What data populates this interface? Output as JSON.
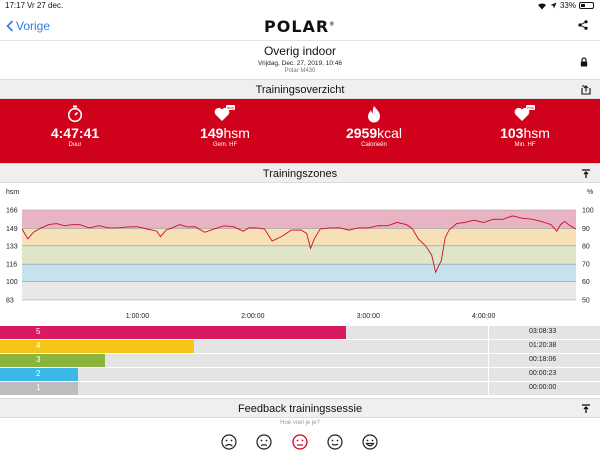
{
  "status_bar": {
    "time": "17:17",
    "date": "Vr 27 dec.",
    "battery": "33%"
  },
  "nav": {
    "back_label": "Vorige",
    "logo": "POLAR"
  },
  "session": {
    "title": "Overig indoor",
    "date": "Vrijdag, Dec. 27, 2019, 10:46",
    "device": "Polar M430"
  },
  "summary": {
    "heading": "Trainingsoverzicht",
    "stats": [
      {
        "icon": "stopwatch-icon",
        "value": "4:47:41",
        "unit": "",
        "label": "Duur"
      },
      {
        "icon": "heart-avg-icon",
        "badge": "avg",
        "value": "149",
        "unit": "hsm",
        "label": "Gem. HF"
      },
      {
        "icon": "flame-icon",
        "value": "2959",
        "unit": "kcal",
        "label": "Calorieën"
      },
      {
        "icon": "heart-min-icon",
        "badge": "min",
        "value": "103",
        "unit": "hsm",
        "label": "Min. HF"
      }
    ]
  },
  "zones_section": {
    "heading": "Trainingszones"
  },
  "chart_data": {
    "type": "line",
    "ylabel": "hsm",
    "y2label": "%",
    "y_ticks": [
      166,
      149,
      133,
      116,
      100,
      83
    ],
    "y2_ticks": [
      100,
      90,
      80,
      70,
      60,
      50
    ],
    "ylim": [
      83,
      170
    ],
    "x_ticks": [
      "1:00:00",
      "2:00:00",
      "3:00:00",
      "4:00:00"
    ],
    "x_tick_minutes": [
      60,
      120,
      180,
      240
    ],
    "xlim_minutes": [
      0,
      288
    ],
    "zone_colors": [
      "#e8b4c4",
      "#f6e0b8",
      "#dfe6c8",
      "#c6e2ef",
      "#e8e8e8"
    ],
    "line_color": "#c8102e",
    "series": [
      {
        "x": [
          0,
          3,
          6,
          10,
          14,
          18,
          22,
          26,
          30,
          35,
          40,
          45,
          50,
          55,
          60,
          65,
          70,
          72,
          75,
          78,
          82,
          86,
          90,
          95,
          100,
          105,
          110,
          115,
          118,
          122,
          126,
          130,
          135,
          140,
          145,
          148,
          150,
          152,
          155,
          160,
          165,
          170,
          175,
          180,
          185,
          190,
          195,
          200,
          203,
          206,
          210,
          213,
          215,
          218,
          220,
          222,
          226,
          230,
          235,
          240,
          245,
          250,
          255,
          260,
          265,
          270,
          275,
          278,
          280,
          282,
          285,
          288
        ],
        "y": [
          148,
          140,
          145,
          150,
          152,
          154,
          151,
          153,
          152,
          150,
          151,
          150,
          149,
          151,
          150,
          149,
          146,
          142,
          147,
          150,
          152,
          151,
          150,
          146,
          148,
          152,
          150,
          147,
          149,
          150,
          148,
          138,
          141,
          148,
          147,
          145,
          130,
          140,
          148,
          150,
          149,
          148,
          149,
          150,
          151,
          152,
          154,
          153,
          148,
          140,
          132,
          125,
          108,
          120,
          140,
          148,
          153,
          155,
          156,
          155,
          157,
          158,
          160,
          159,
          157,
          156,
          152,
          147,
          152,
          156,
          151,
          149
        ]
      }
    ]
  },
  "zones": [
    {
      "zone": "5",
      "time": "03:08:33",
      "fraction": 0.577,
      "color": "#d81b60"
    },
    {
      "zone": "4",
      "time": "01:20:38",
      "fraction": 0.323,
      "color": "#f5c518"
    },
    {
      "zone": "3",
      "time": "00:18:06",
      "fraction": 0.175,
      "color": "#8ab43c"
    },
    {
      "zone": "2",
      "time": "00:00:23",
      "fraction": 0.13,
      "color": "#3bb8e8"
    },
    {
      "zone": "1",
      "time": "00:00:00",
      "fraction": 0.13,
      "color": "#bdbdbd"
    }
  ],
  "feedback": {
    "heading": "Feedback trainingssessie",
    "prompt": "Hoe voel je je?",
    "faces": [
      "very-sad-face-icon",
      "sad-face-icon",
      "neutral-face-icon",
      "happy-face-icon",
      "very-happy-face-icon"
    ],
    "selected_index": 2
  }
}
